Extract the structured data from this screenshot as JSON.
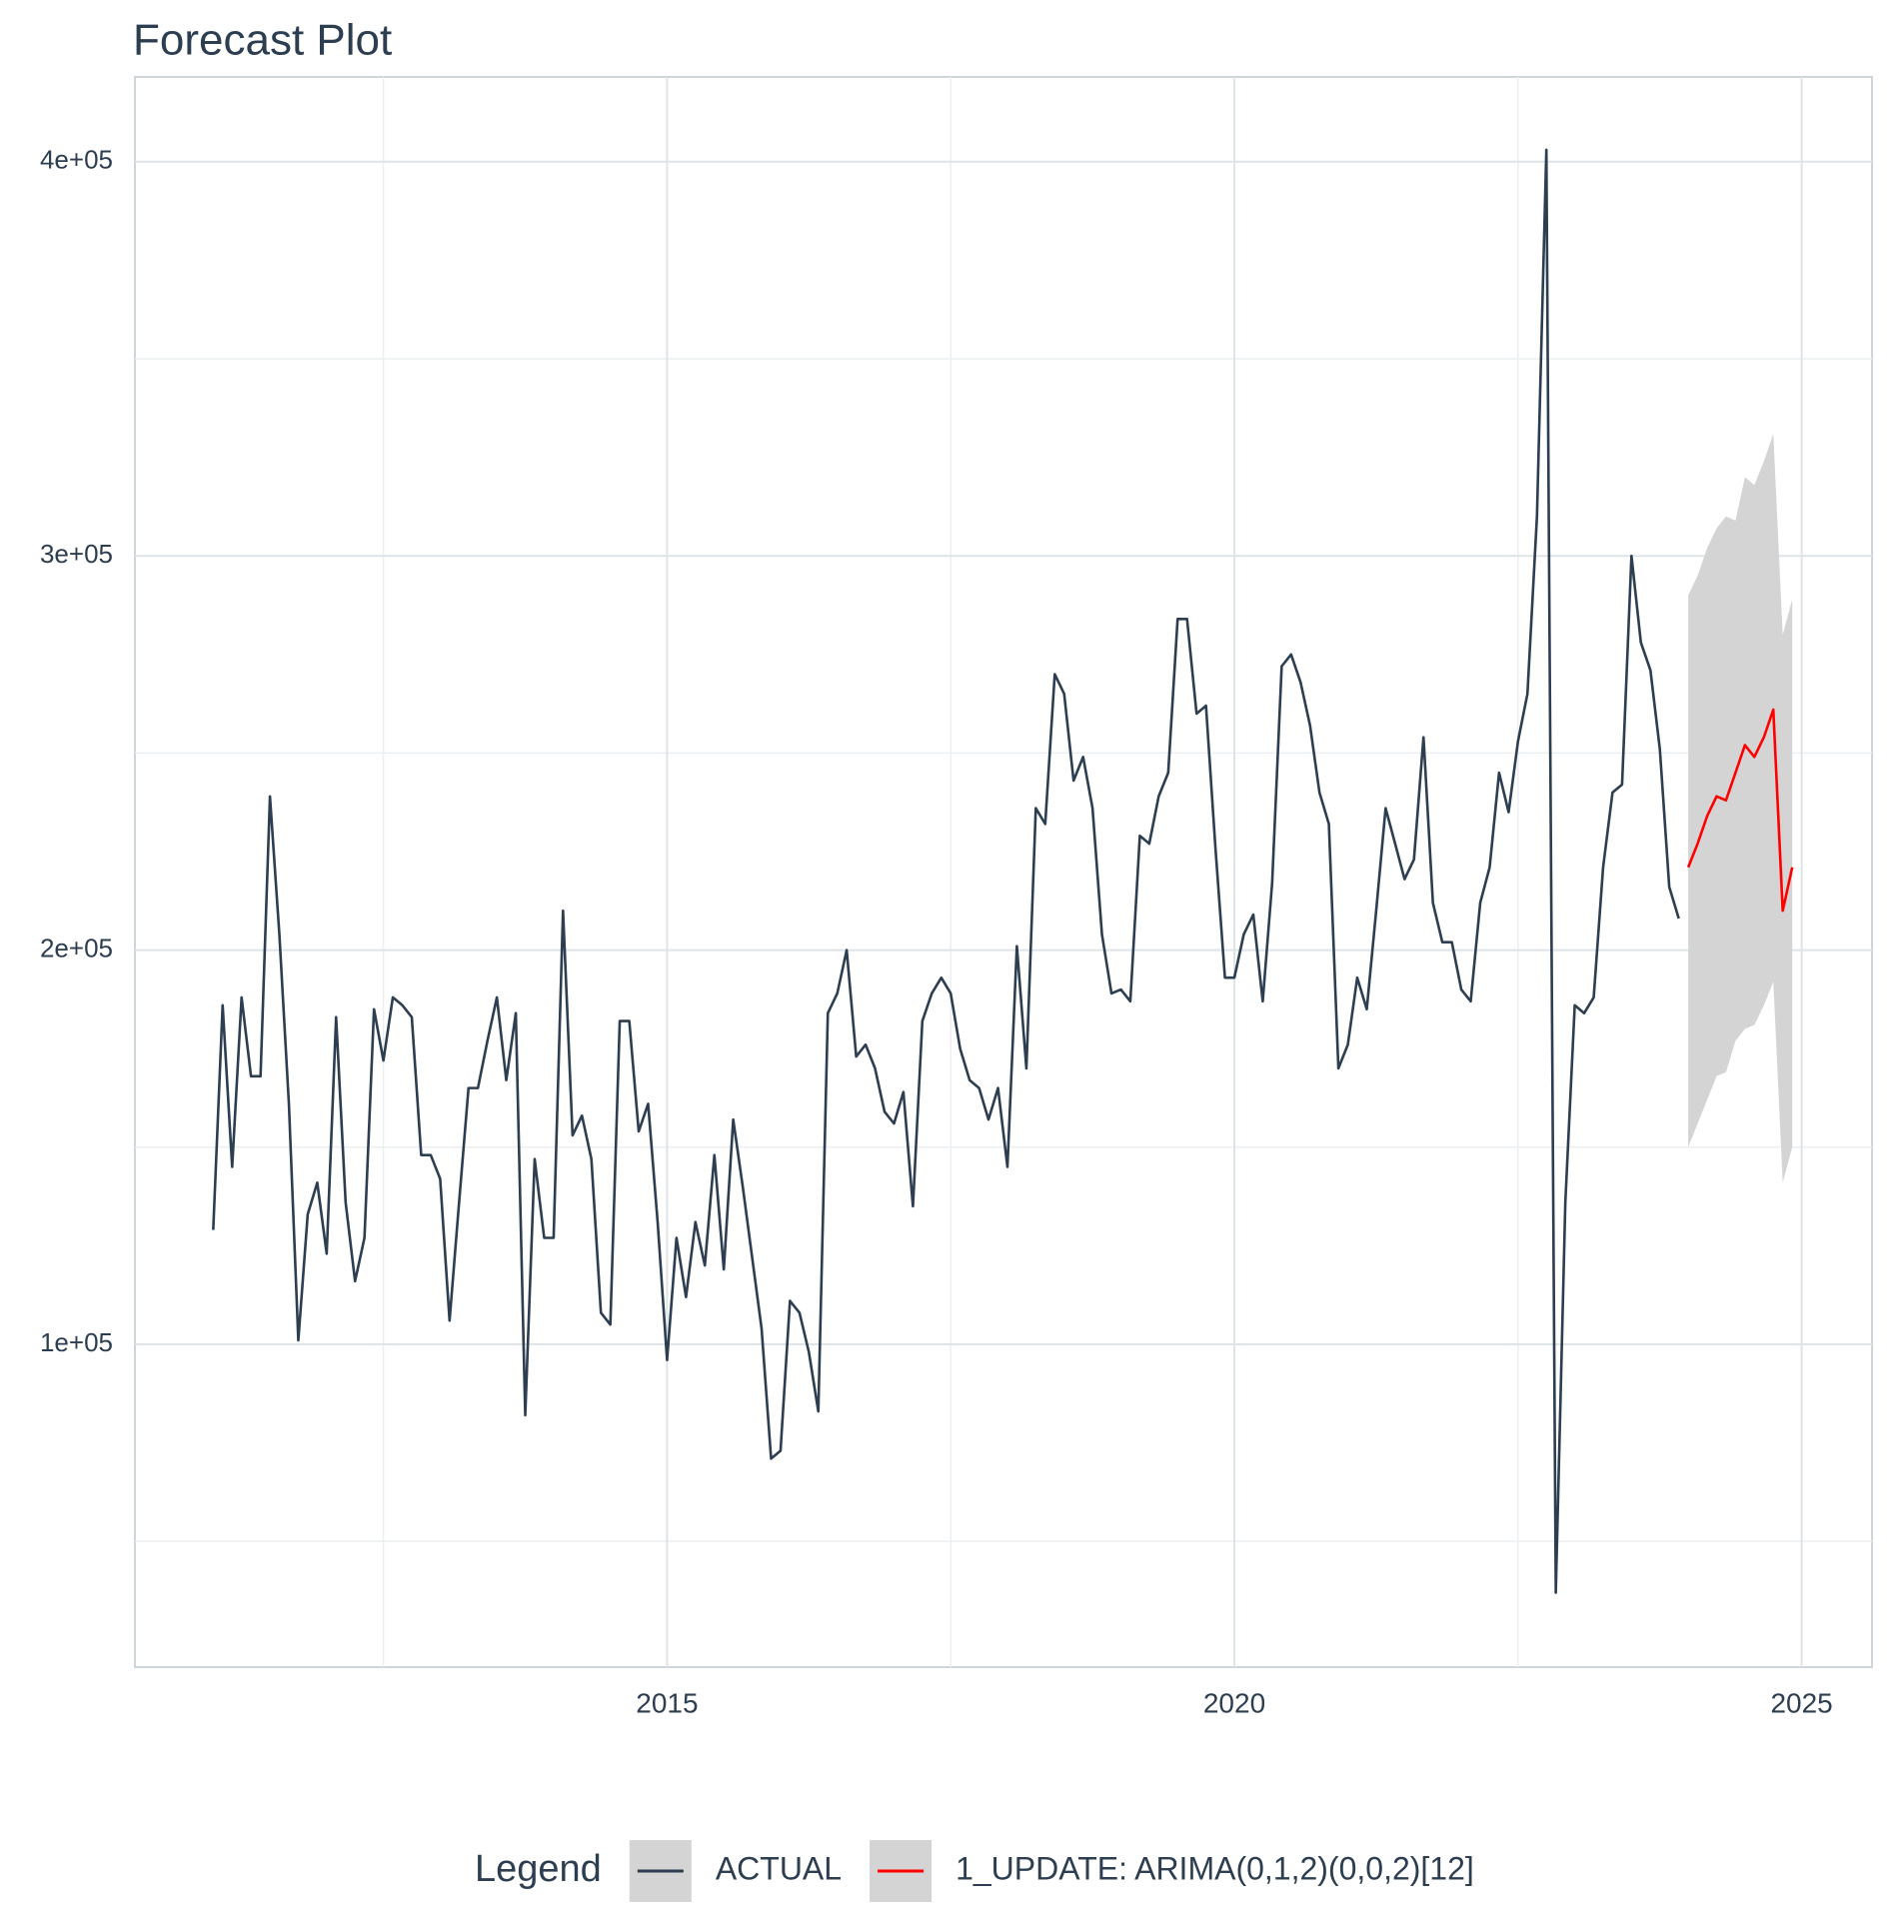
{
  "chart_data": {
    "type": "line",
    "title": "Forecast Plot",
    "xlim": [
      2010.31,
      2025.62
    ],
    "xticks": [
      2015,
      2020,
      2025
    ],
    "xminor": [
      2012.5,
      2017.5,
      2022.5
    ],
    "ylim": [
      18100,
      421500
    ],
    "yticks": [
      {
        "value": 100000,
        "label": "1e+05"
      },
      {
        "value": 200000,
        "label": "2e+05"
      },
      {
        "value": 300000,
        "label": "3e+05"
      },
      {
        "value": 400000,
        "label": "4e+05"
      }
    ],
    "yminor": [
      50000,
      150000,
      250000,
      350000
    ],
    "grid": true,
    "legend_title": "Legend",
    "legend_position": "bottom",
    "series": [
      {
        "name": "ACTUAL",
        "color": "#2c3e50",
        "x": [
          2011,
          2011.083,
          2011.167,
          2011.25,
          2011.333,
          2011.417,
          2011.5,
          2011.583,
          2011.667,
          2011.75,
          2011.833,
          2011.917,
          2012,
          2012.083,
          2012.167,
          2012.25,
          2012.333,
          2012.417,
          2012.5,
          2012.583,
          2012.667,
          2012.75,
          2012.833,
          2012.917,
          2013,
          2013.083,
          2013.167,
          2013.25,
          2013.333,
          2013.417,
          2013.5,
          2013.583,
          2013.667,
          2013.75,
          2013.833,
          2013.917,
          2014,
          2014.083,
          2014.167,
          2014.25,
          2014.333,
          2014.417,
          2014.5,
          2014.583,
          2014.667,
          2014.75,
          2014.833,
          2014.917,
          2015,
          2015.083,
          2015.167,
          2015.25,
          2015.333,
          2015.417,
          2015.5,
          2015.583,
          2015.667,
          2015.75,
          2015.833,
          2015.917,
          2016,
          2016.083,
          2016.167,
          2016.25,
          2016.333,
          2016.417,
          2016.5,
          2016.583,
          2016.667,
          2016.75,
          2016.833,
          2016.917,
          2017,
          2017.083,
          2017.167,
          2017.25,
          2017.333,
          2017.417,
          2017.5,
          2017.583,
          2017.667,
          2017.75,
          2017.833,
          2017.917,
          2018,
          2018.083,
          2018.167,
          2018.25,
          2018.333,
          2018.417,
          2018.5,
          2018.583,
          2018.667,
          2018.75,
          2018.833,
          2018.917,
          2019,
          2019.083,
          2019.167,
          2019.25,
          2019.333,
          2019.417,
          2019.5,
          2019.583,
          2019.667,
          2019.75,
          2019.833,
          2019.917,
          2020,
          2020.083,
          2020.167,
          2020.25,
          2020.333,
          2020.417,
          2020.5,
          2020.583,
          2020.667,
          2020.75,
          2020.833,
          2020.917,
          2021,
          2021.083,
          2021.167,
          2021.25,
          2021.333,
          2021.417,
          2021.5,
          2021.583,
          2021.667,
          2021.75,
          2021.833,
          2021.917,
          2022,
          2022.083,
          2022.167,
          2022.25,
          2022.333,
          2022.417,
          2022.5,
          2022.583,
          2022.667,
          2022.75,
          2022.833,
          2022.917,
          2023,
          2023.083,
          2023.167,
          2023.25,
          2023.333,
          2023.417,
          2023.5,
          2023.583,
          2023.667,
          2023.75,
          2023.833,
          2023.917
        ],
        "values": [
          129000,
          186000,
          145000,
          188000,
          168000,
          168000,
          239000,
          204000,
          161000,
          101000,
          133000,
          141000,
          123000,
          183000,
          136000,
          116000,
          127000,
          185000,
          172000,
          188000,
          186000,
          183000,
          148000,
          148000,
          142000,
          106000,
          136000,
          165000,
          165000,
          177000,
          188000,
          167000,
          184000,
          82000,
          147000,
          127000,
          127000,
          210000,
          153000,
          158000,
          147000,
          108000,
          105000,
          182000,
          182000,
          154000,
          161000,
          131000,
          96000,
          127000,
          112000,
          131000,
          120000,
          148000,
          119000,
          157000,
          140000,
          122000,
          104000,
          71000,
          73000,
          111000,
          108000,
          98000,
          83000,
          184000,
          189000,
          200000,
          173000,
          176000,
          170000,
          159000,
          156000,
          164000,
          135000,
          182000,
          189000,
          193000,
          189000,
          175000,
          167000,
          165000,
          157000,
          165000,
          145000,
          201000,
          170000,
          236000,
          232000,
          270000,
          265000,
          243000,
          249000,
          236000,
          204000,
          189000,
          190000,
          187000,
          229000,
          227000,
          239000,
          245000,
          284000,
          284000,
          260000,
          262000,
          226000,
          193000,
          193000,
          204000,
          209000,
          187000,
          217000,
          272000,
          275000,
          268000,
          257000,
          240000,
          232000,
          170000,
          176000,
          193000,
          185000,
          210000,
          236000,
          227000,
          218000,
          223000,
          254000,
          212000,
          202000,
          202000,
          190000,
          187000,
          212000,
          221000,
          245000,
          235000,
          253000,
          265000,
          310000,
          403000,
          37000,
          136000,
          186000,
          184000,
          188000,
          221000,
          240000,
          242000,
          300000,
          278000,
          271000,
          251000,
          216000,
          208000
        ]
      },
      {
        "name": "1_UPDATE: ARIMA(0,1,2)(0,0,2)[12]",
        "color": "#ff0000",
        "band_color": "#d4d4d4",
        "x": [
          2024,
          2024.083,
          2024.167,
          2024.25,
          2024.333,
          2024.417,
          2024.5,
          2024.583,
          2024.667,
          2024.75,
          2024.833,
          2024.917
        ],
        "values": [
          221000,
          227000,
          234000,
          239000,
          238000,
          245000,
          252000,
          249000,
          254000,
          261000,
          210000,
          221000
        ],
        "lower": [
          150000,
          156000,
          162000,
          168000,
          169000,
          177000,
          180000,
          181000,
          186000,
          192000,
          141000,
          150000
        ],
        "upper": [
          290000,
          295000,
          302000,
          307000,
          310000,
          309000,
          320000,
          318000,
          324000,
          331000,
          280000,
          289000
        ]
      }
    ]
  }
}
